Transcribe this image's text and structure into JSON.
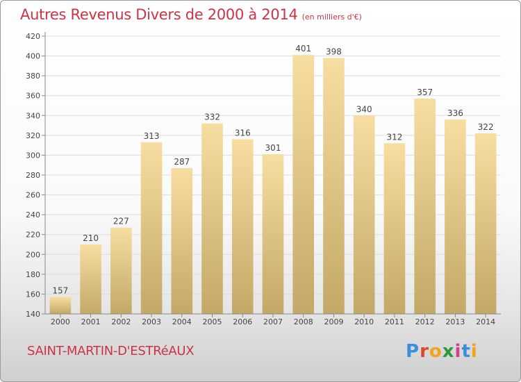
{
  "title": "Autres Revenus Divers de 2000 à 2014",
  "unit": "(en milliers d'€)",
  "commune": "SAINT-MARTIN-D'ESTRéAUX",
  "brand": {
    "letters": [
      "P",
      "r",
      "o",
      "x",
      "i",
      "t",
      "i"
    ],
    "colors": [
      "#3a8fd6",
      "#e0442a",
      "#f3a21b",
      "#2e9a3c",
      "#d63f8f",
      "#3a8fd6",
      "#f3a21b"
    ]
  },
  "colors": {
    "accent": "#cc3344",
    "bar_light": "#f7dea0",
    "bar_dark": "#c3a867",
    "grid": "#dddddd",
    "axis": "#888888"
  },
  "chart_data": {
    "type": "bar",
    "categories": [
      "2000",
      "2001",
      "2002",
      "2003",
      "2004",
      "2005",
      "2006",
      "2007",
      "2008",
      "2009",
      "2010",
      "2011",
      "2012",
      "2013",
      "2014"
    ],
    "values": [
      157,
      210,
      227,
      313,
      287,
      332,
      316,
      301,
      401,
      398,
      340,
      312,
      357,
      336,
      322
    ],
    "title": "Autres Revenus Divers de 2000 à 2014",
    "ylim": [
      140,
      420
    ],
    "yticks": [
      140,
      160,
      180,
      200,
      220,
      240,
      260,
      280,
      300,
      320,
      340,
      360,
      380,
      400,
      420
    ],
    "grid": true,
    "xlabel": "",
    "ylabel": ""
  }
}
